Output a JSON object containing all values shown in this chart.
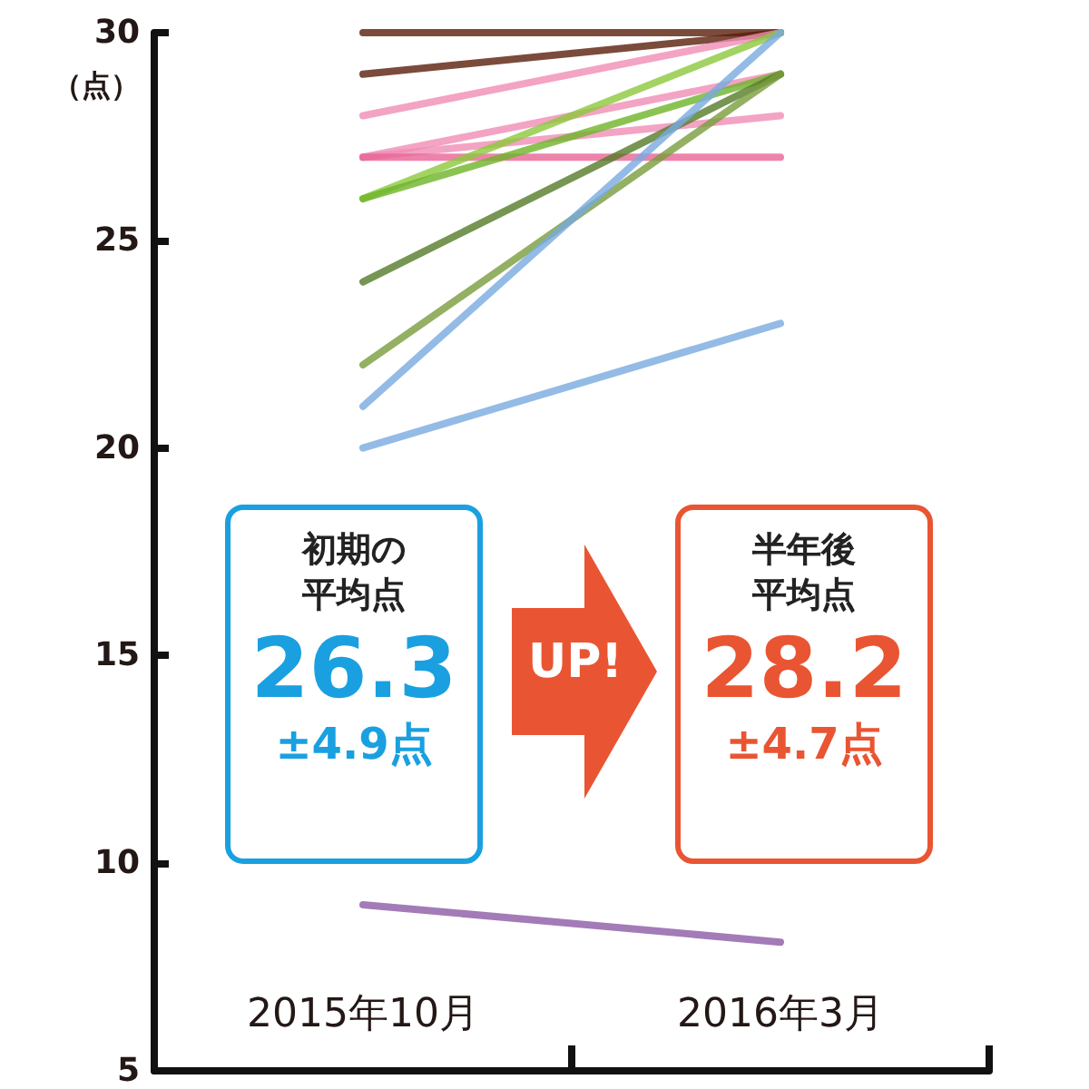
{
  "chart_data": {
    "type": "line",
    "ylabel": "（点）",
    "categories": [
      "2015年10月",
      "2016年3月"
    ],
    "ylim": [
      5,
      30
    ],
    "yticks": [
      5,
      10,
      15,
      20,
      25,
      30
    ],
    "grid": false,
    "marker": "none",
    "line_style": "solid",
    "annotations": [
      "初期の",
      "平均点",
      "26.3",
      "±4.9点",
      "UP!",
      "半年後",
      "平均点",
      "28.2",
      "±4.7点"
    ],
    "series": [
      {
        "color": "#5a1e0a",
        "values": [
          30,
          30
        ]
      },
      {
        "color": "#5a1e0a",
        "values": [
          29,
          30
        ]
      },
      {
        "color": "#f08cb4",
        "values": [
          28,
          30
        ]
      },
      {
        "color": "#f08cb4",
        "values": [
          27,
          29
        ]
      },
      {
        "color": "#f08cb4",
        "values": [
          27,
          28
        ]
      },
      {
        "color": "#e86496",
        "values": [
          27,
          27
        ]
      },
      {
        "color": "#8cc83c",
        "values": [
          26,
          30
        ]
      },
      {
        "color": "#6eb428",
        "values": [
          26,
          29
        ]
      },
      {
        "color": "#557a28",
        "values": [
          24,
          29
        ]
      },
      {
        "color": "#789c3c",
        "values": [
          22,
          29
        ]
      },
      {
        "color": "#78aae0",
        "values": [
          21,
          30
        ]
      },
      {
        "color": "#78aae0",
        "values": [
          20,
          23
        ]
      },
      {
        "color": "#8c5aa5",
        "values": [
          9,
          8.1
        ]
      }
    ]
  }
}
